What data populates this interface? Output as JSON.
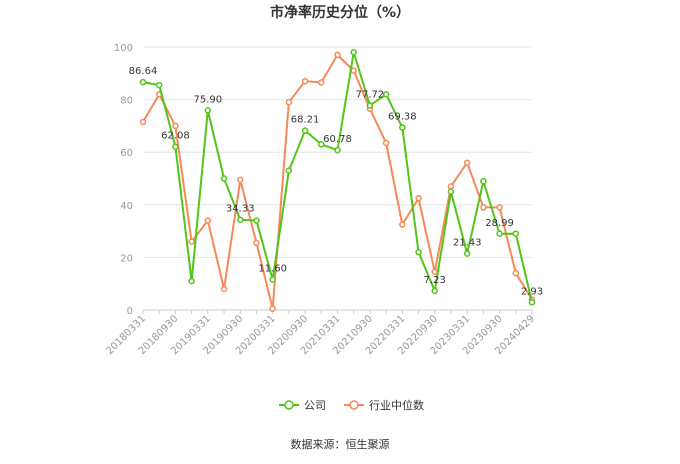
{
  "chart_data": {
    "type": "line",
    "title": "市净率历史分位（%）",
    "x_tick_labels": [
      "20180331",
      "20180930",
      "20190331",
      "20190930",
      "20200331",
      "20200930",
      "20210331",
      "20210930",
      "20220331",
      "20220930",
      "20230331",
      "20230930",
      "20240429"
    ],
    "x": [
      "20180331",
      "20180630",
      "20180930",
      "20181231",
      "20190331",
      "20190630",
      "20190930",
      "20191231",
      "20200331",
      "20200630",
      "20200930",
      "20201231",
      "20210331",
      "20210630",
      "20210930",
      "20211231",
      "20220331",
      "20220630",
      "20220930",
      "20221231",
      "20230331",
      "20230630",
      "20230930",
      "20231231",
      "20240429"
    ],
    "ylim": [
      0,
      100
    ],
    "y_ticks": [
      0,
      20,
      40,
      60,
      80,
      100
    ],
    "grid": true,
    "legend_position": "bottom",
    "series": [
      {
        "name": "公司",
        "color": "#52c41a",
        "values": [
          86.64,
          85.5,
          62.08,
          11.0,
          75.9,
          50.0,
          34.33,
          34.0,
          11.6,
          53.0,
          68.21,
          63.0,
          60.78,
          98.0,
          77.72,
          82.0,
          69.38,
          22.0,
          7.23,
          45.0,
          21.43,
          49.0,
          28.99,
          29.0,
          2.93
        ]
      },
      {
        "name": "行业中位数",
        "color": "#f5895a",
        "values": [
          71.5,
          82.0,
          70.0,
          26.0,
          34.0,
          8.0,
          49.5,
          25.5,
          0.5,
          79.0,
          87.0,
          86.5,
          97.0,
          91.0,
          76.5,
          63.5,
          32.5,
          42.5,
          14.5,
          47.0,
          56.0,
          39.0,
          39.0,
          14.0,
          4.0
        ]
      }
    ],
    "data_labels": [
      {
        "series": 0,
        "index": 0,
        "text": "86.64"
      },
      {
        "series": 0,
        "index": 2,
        "text": "62.08"
      },
      {
        "series": 0,
        "index": 4,
        "text": "75.90"
      },
      {
        "series": 0,
        "index": 6,
        "text": "34.33"
      },
      {
        "series": 0,
        "index": 8,
        "text": "11.60"
      },
      {
        "series": 0,
        "index": 10,
        "text": "68.21"
      },
      {
        "series": 0,
        "index": 12,
        "text": "60.78"
      },
      {
        "series": 0,
        "index": 14,
        "text": "77.72"
      },
      {
        "series": 0,
        "index": 16,
        "text": "69.38"
      },
      {
        "series": 0,
        "index": 18,
        "text": "7.23"
      },
      {
        "series": 0,
        "index": 20,
        "text": "21.43"
      },
      {
        "series": 0,
        "index": 22,
        "text": "28.99"
      },
      {
        "series": 0,
        "index": 24,
        "text": "2.93"
      }
    ]
  },
  "source": "数据来源：恒生聚源"
}
